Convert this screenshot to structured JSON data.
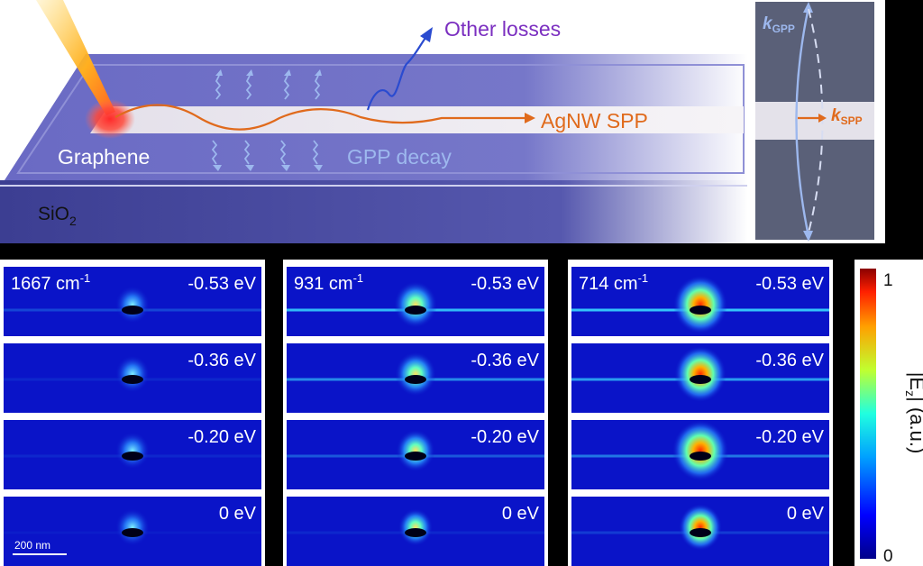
{
  "schematic": {
    "graphene_label": "Graphene",
    "sio2_label_main": "SiO",
    "sio2_label_sub": "2",
    "other_losses_label": "Other losses",
    "agnw_spp_label": "AgNW SPP",
    "gpp_decay_label": "GPP decay"
  },
  "kdiagram": {
    "k_gpp_main": "k",
    "k_gpp_sub": "GPP",
    "k_spp_main": "k",
    "k_spp_sub": "SPP"
  },
  "field_maps": {
    "columns": [
      {
        "wavenumber_main": "1667 cm",
        "wavenumber_sup": "-1",
        "rows": [
          {
            "energy": "-0.53 eV"
          },
          {
            "energy": "-0.36 eV"
          },
          {
            "energy": "-0.20 eV"
          },
          {
            "energy": "0 eV"
          }
        ],
        "scale_bar_label": "200 nm"
      },
      {
        "wavenumber_main": "931 cm",
        "wavenumber_sup": "-1",
        "rows": [
          {
            "energy": "-0.53 eV"
          },
          {
            "energy": "-0.36 eV"
          },
          {
            "energy": "-0.20 eV"
          },
          {
            "energy": "0 eV"
          }
        ]
      },
      {
        "wavenumber_main": "714 cm",
        "wavenumber_sup": "-1",
        "rows": [
          {
            "energy": "-0.53 eV"
          },
          {
            "energy": "-0.36 eV"
          },
          {
            "energy": "-0.20 eV"
          },
          {
            "energy": "0 eV"
          }
        ]
      }
    ]
  },
  "colorbar": {
    "max_label": "1",
    "min_label": "0",
    "title": "|Ez| (a.u.)",
    "title_pre": "|E",
    "title_sub": "z",
    "title_post": "| (a.u.)"
  },
  "colors": {
    "background": "#000000",
    "substrate_top": "#6e6fc6",
    "substrate_side": "#3f4195",
    "nanowire": "#ece8ee",
    "spp_orange": "#e06a1c",
    "gpp_blue": "#9db8ee",
    "losses_purple": "#7b2fc0",
    "field_bg": "#0a14c8",
    "kpanel_bg": "#5a6078"
  }
}
